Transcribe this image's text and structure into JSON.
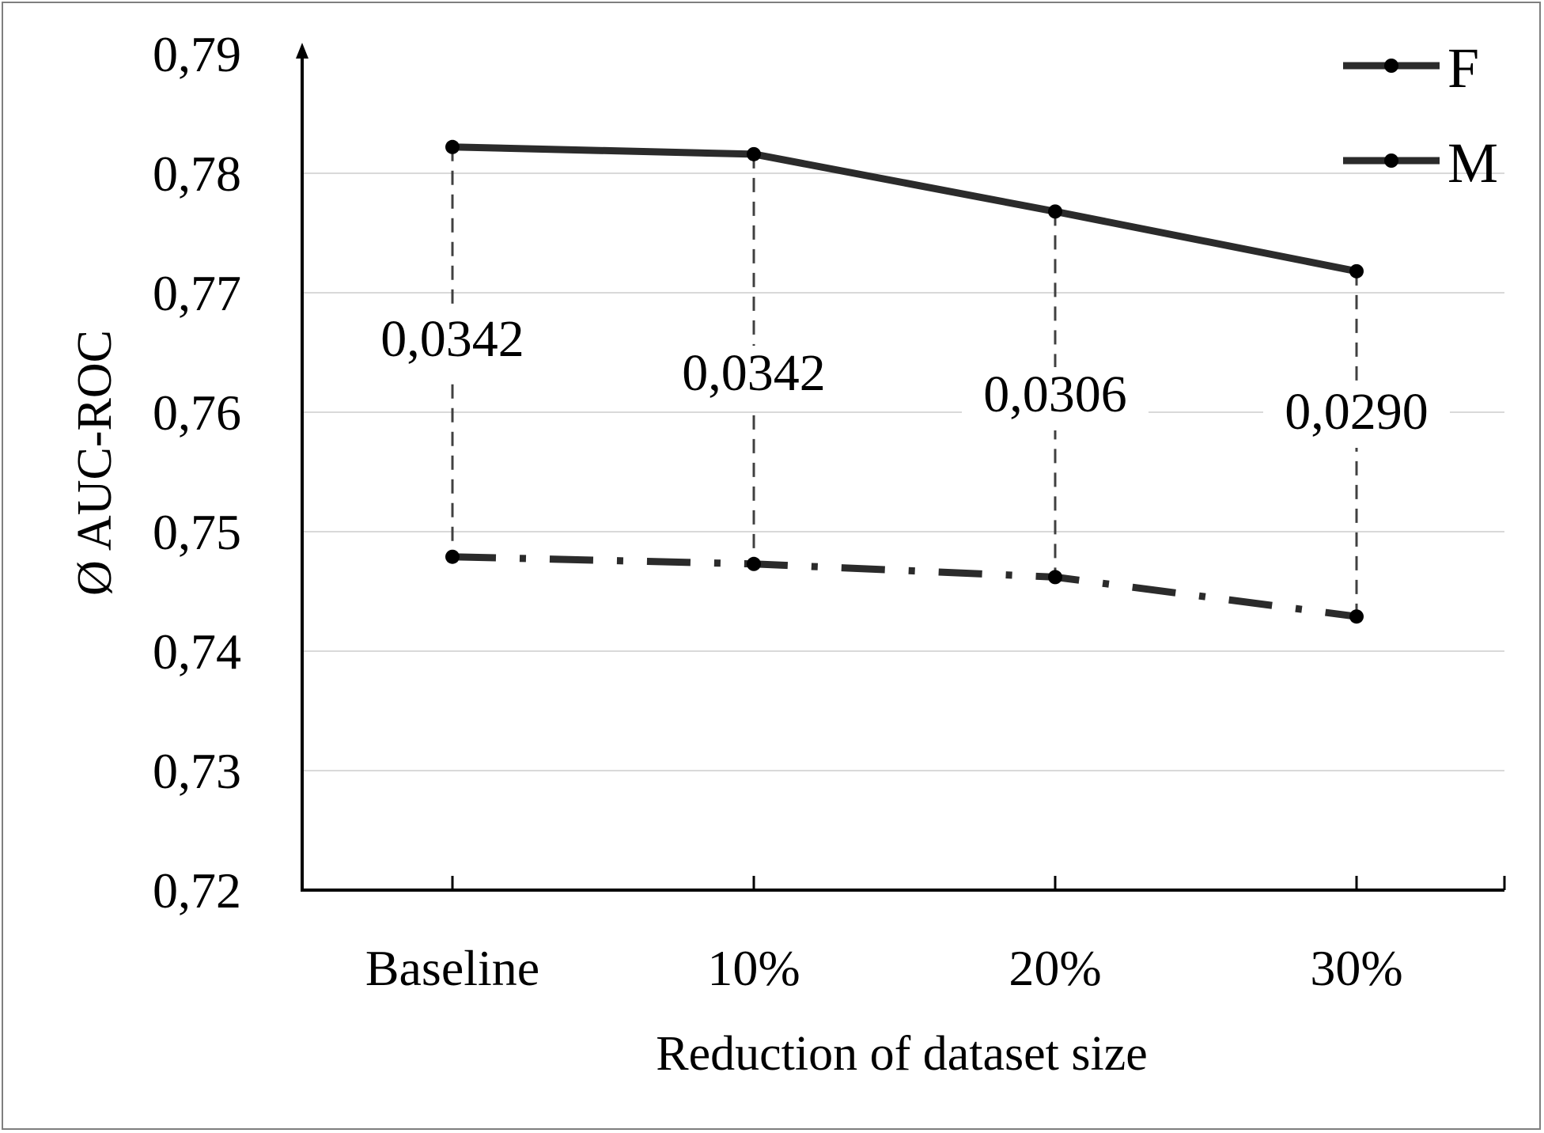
{
  "chart_data": {
    "type": "line",
    "categories": [
      "Baseline",
      "10%",
      "20%",
      "30%"
    ],
    "series": [
      {
        "name": "F",
        "values": [
          0.7822,
          0.7816,
          0.7768,
          0.7718
        ],
        "color": "#2b2b2b",
        "line_style": "solid"
      },
      {
        "name": "M",
        "values": [
          0.7479,
          0.7473,
          0.7462,
          0.7429
        ],
        "color": "#2b2b2b",
        "line_style": "dash-dot"
      }
    ],
    "differences": [
      "0,0342",
      "0,0342",
      "0,0306",
      "0,0290"
    ],
    "xlabel": "Reduction of dataset size",
    "ylabel": "Ø AUC-ROC",
    "ylim": [
      0.72,
      0.79
    ],
    "yticks": [
      "0,72",
      "0,73",
      "0,74",
      "0,75",
      "0,76",
      "0,77",
      "0,78",
      "0,79"
    ],
    "grid": "horizontal",
    "legend_position": "top-right",
    "gridline_color": "#d9d9d9",
    "connector_color": "#404040"
  }
}
